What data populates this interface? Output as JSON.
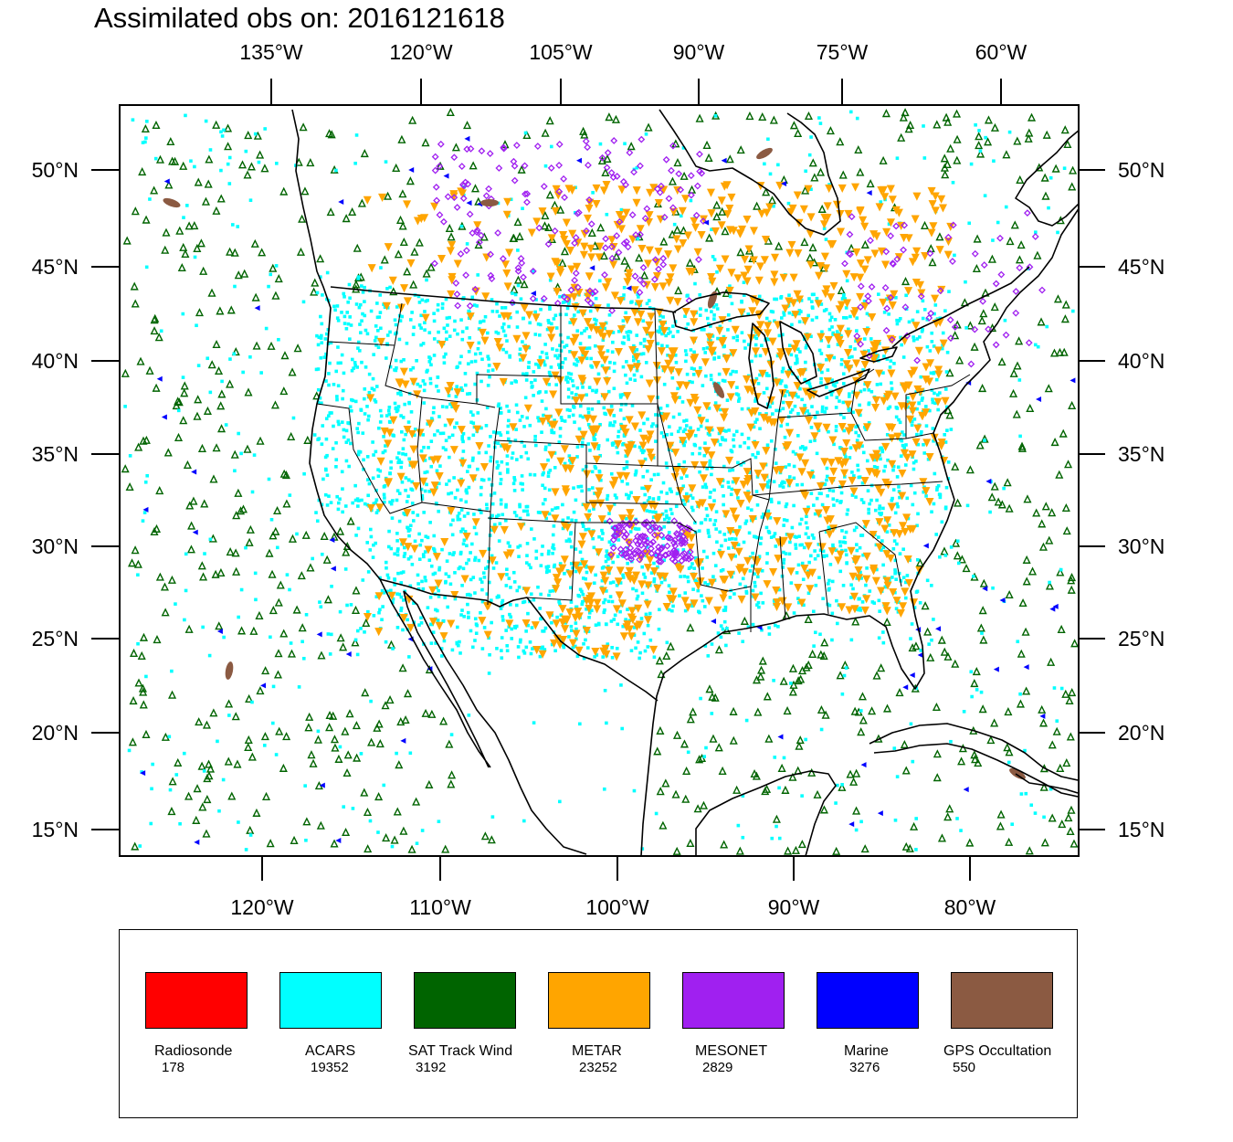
{
  "title": "Assimilated obs on: 2016121618",
  "axes": {
    "top_lon_labels": [
      "135°W",
      "120°W",
      "105°W",
      "90°W",
      "75°W",
      "60°W"
    ],
    "bottom_lon_labels": [
      "120°W",
      "110°W",
      "100°W",
      "90°W",
      "80°W"
    ],
    "lat_labels": [
      "50°N",
      "45°N",
      "40°N",
      "35°N",
      "30°N",
      "25°N",
      "20°N",
      "15°N"
    ]
  },
  "legend": {
    "items": [
      {
        "name": "Radiosonde",
        "count": "178",
        "color": "#ff0000"
      },
      {
        "name": "ACARS",
        "count": "19352",
        "color": "#00ffff"
      },
      {
        "name": "SAT Track Wind",
        "count": "3192",
        "color": "#006400"
      },
      {
        "name": "METAR",
        "count": "23252",
        "color": "#ffa500"
      },
      {
        "name": "MESONET",
        "count": "2829",
        "color": "#a020f0"
      },
      {
        "name": "Marine",
        "count": "3276",
        "color": "#0000ff"
      },
      {
        "name": "GPS Occultation",
        "count": "550",
        "color": "#8b5a42"
      }
    ]
  },
  "map": {
    "projection": "Lambert conformal conic (CONUS domain)",
    "marker_shapes": {
      "ACARS": "small-square",
      "SAT Track Wind": "open-triangle",
      "METAR": "inverted-triangle",
      "MESONET": "open-diamond",
      "Marine": "left-pointing-triangle",
      "GPS Occultation": "elongated-blob"
    }
  }
}
